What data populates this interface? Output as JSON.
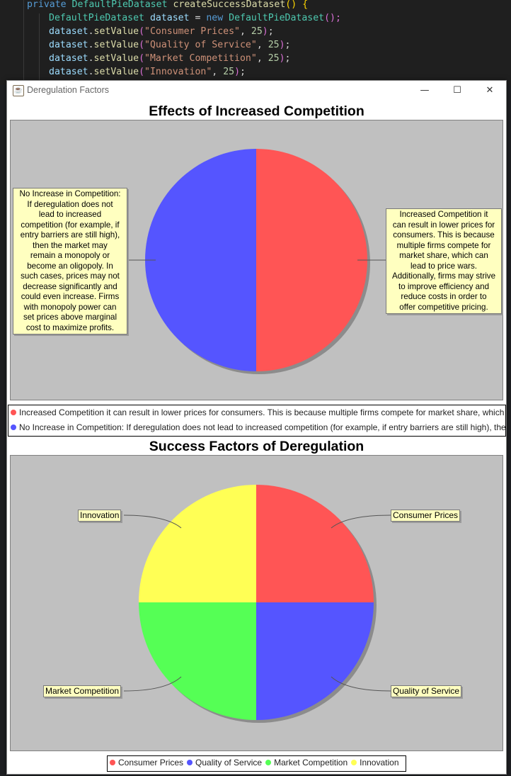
{
  "editor": {
    "line1": {
      "kw": "private",
      "type": "DefaultPieDataset",
      "fn": "createSuccessDataset",
      "rest": "() {"
    },
    "line2": {
      "type": "DefaultPieDataset",
      "var": "dataset",
      "eq": " = ",
      "kw": "new",
      "type2": "DefaultPieDataset",
      "rest": "();"
    },
    "set_lines": [
      {
        "obj": "dataset",
        "method": "setValue",
        "str": "\"Consumer Prices\"",
        "num": "25"
      },
      {
        "obj": "dataset",
        "method": "setValue",
        "str": "\"Quality of Service\"",
        "num": "25"
      },
      {
        "obj": "dataset",
        "method": "setValue",
        "str": "\"Market Competition\"",
        "num": "25"
      },
      {
        "obj": "dataset",
        "method": "setValue",
        "str": "\"Innovation\"",
        "num": "25"
      }
    ]
  },
  "window": {
    "title": "Deregulation Factors",
    "controls": {
      "minimize": "—",
      "maximize": "☐",
      "close": "✕"
    }
  },
  "chart_data": [
    {
      "type": "pie",
      "title": "Effects of Increased Competition",
      "categories": [
        "Increased Competition  it can result in lower prices for consumers. This is because multiple firms compete for market share, which can lead to price wars. Additionally, firms may strive to improve efficiency and reduce costs in order to offer competitive pricing.",
        "No Increase in Competition: If deregulation does not lead to increased competition (for example, if entry barriers are still high), then the market may remain a monopoly or become an oligopoly. In such cases, prices may not decrease significantly and could even increase. Firms with monopoly power can set prices above marginal cost to maximize profits."
      ],
      "values": [
        50,
        50
      ],
      "colors": [
        "#ff5555",
        "#5555ff"
      ],
      "legend": "bottom"
    },
    {
      "type": "pie",
      "title": "Success Factors of Deregulation",
      "categories": [
        "Consumer Prices",
        "Quality of Service",
        "Market Competition",
        "Innovation"
      ],
      "values": [
        25,
        25,
        25,
        25
      ],
      "colors": [
        "#ff5555",
        "#5555ff",
        "#55ff55",
        "#ffff55"
      ],
      "legend": "bottom"
    }
  ],
  "chart1_labels": {
    "right_lines": [
      "Increased Competition  it",
      "can result in lower prices for",
      "consumers. This is because",
      "multiple firms compete for",
      "market share, which can",
      "lead to price wars.",
      "Additionally, firms may strive",
      "to improve efficiency and",
      "reduce costs in order to",
      "offer competitive pricing."
    ],
    "left_lines": [
      "No Increase in Competition:",
      "If deregulation does not",
      "lead to increased",
      "competition (for example, if",
      "entry barriers are still high),",
      "then the market may",
      "remain a monopoly or",
      "become an oligopoly. In",
      "such cases, prices may not",
      "decrease significantly and",
      "could even increase. Firms",
      "with monopoly power can",
      "set prices above marginal",
      "cost to maximize profits."
    ]
  }
}
